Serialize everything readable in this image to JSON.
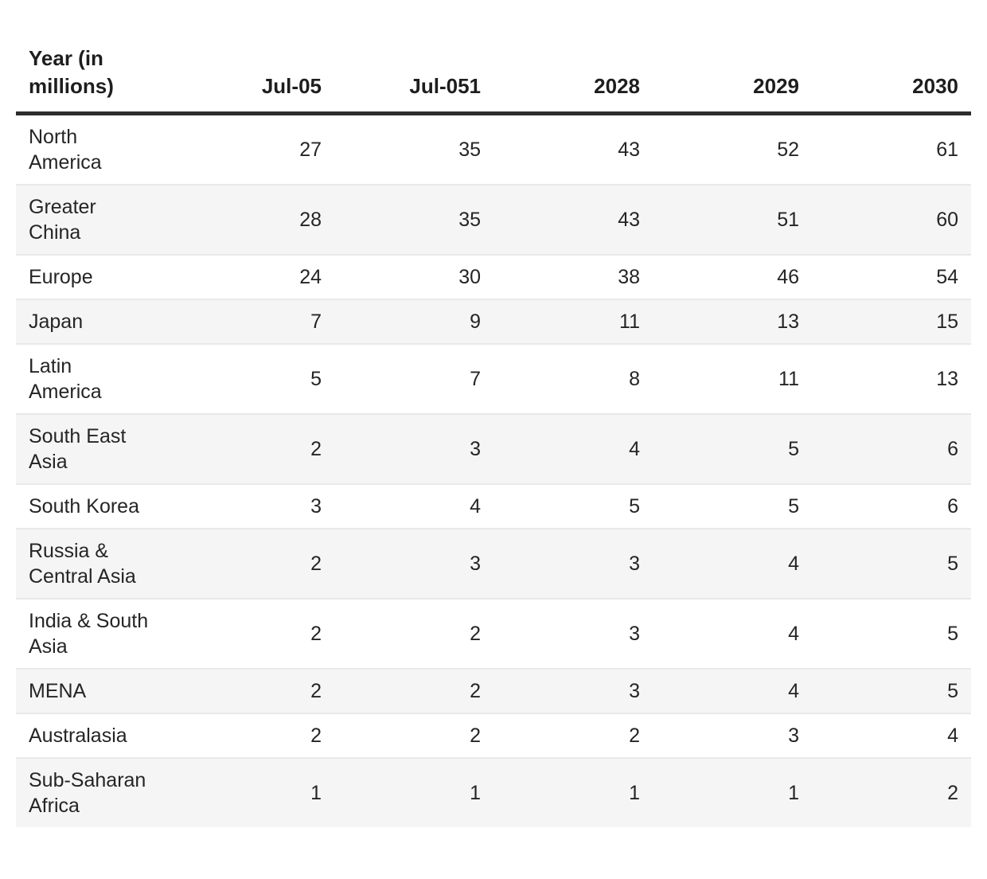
{
  "table": {
    "columns": [
      "Year (in millions)",
      "Jul-05",
      "Jul-051",
      "2028",
      "2029",
      "2030"
    ],
    "rows": [
      {
        "region": "North\nAmerica",
        "values": [
          "27",
          "35",
          "43",
          "52",
          "61"
        ]
      },
      {
        "region": "Greater\nChina",
        "values": [
          "28",
          "35",
          "43",
          "51",
          "60"
        ]
      },
      {
        "region": "Europe",
        "values": [
          "24",
          "30",
          "38",
          "46",
          "54"
        ]
      },
      {
        "region": "Japan",
        "values": [
          "7",
          "9",
          "11",
          "13",
          "15"
        ]
      },
      {
        "region": "Latin\nAmerica",
        "values": [
          "5",
          "7",
          "8",
          "11",
          "13"
        ]
      },
      {
        "region": "South East\nAsia",
        "values": [
          "2",
          "3",
          "4",
          "5",
          "6"
        ]
      },
      {
        "region": "South Korea",
        "values": [
          "3",
          "4",
          "5",
          "5",
          "6"
        ]
      },
      {
        "region": "Russia &\nCentral Asia",
        "values": [
          "2",
          "3",
          "3",
          "4",
          "5"
        ]
      },
      {
        "region": "India & South\nAsia",
        "values": [
          "2",
          "2",
          "3",
          "4",
          "5"
        ]
      },
      {
        "region": "MENA",
        "values": [
          "2",
          "2",
          "3",
          "4",
          "5"
        ]
      },
      {
        "region": "Australasia",
        "values": [
          "2",
          "2",
          "2",
          "3",
          "4"
        ]
      },
      {
        "region": "Sub-Saharan\nAfrica",
        "values": [
          "1",
          "1",
          "1",
          "1",
          "2"
        ]
      }
    ]
  },
  "chart_data": {
    "type": "table",
    "title": "Year (in millions)",
    "categories": [
      "North America",
      "Greater China",
      "Europe",
      "Japan",
      "Latin America",
      "South East Asia",
      "South Korea",
      "Russia & Central Asia",
      "India & South Asia",
      "MENA",
      "Australasia",
      "Sub-Saharan Africa"
    ],
    "series": [
      {
        "name": "Jul-05",
        "values": [
          27,
          28,
          24,
          7,
          5,
          2,
          3,
          2,
          2,
          2,
          2,
          1
        ]
      },
      {
        "name": "Jul-051",
        "values": [
          35,
          35,
          30,
          9,
          7,
          3,
          4,
          3,
          2,
          2,
          2,
          1
        ]
      },
      {
        "name": "2028",
        "values": [
          43,
          43,
          38,
          11,
          8,
          4,
          5,
          3,
          3,
          3,
          2,
          1
        ]
      },
      {
        "name": "2029",
        "values": [
          52,
          51,
          46,
          13,
          11,
          5,
          5,
          4,
          4,
          4,
          3,
          1
        ]
      },
      {
        "name": "2030",
        "values": [
          61,
          60,
          54,
          15,
          13,
          6,
          6,
          5,
          5,
          5,
          4,
          2
        ]
      }
    ],
    "layout": {
      "zebra_stripe_color": "#f5f5f5",
      "header_rule_color": "#2d2d2d",
      "row_divider_color": "#e9e9e9",
      "text_color": "#212121"
    }
  }
}
